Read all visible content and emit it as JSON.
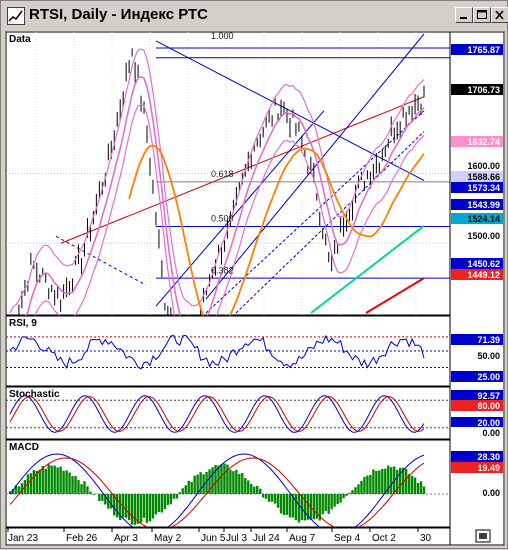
{
  "window": {
    "title": "RTSI, Daily - Индекс РТС",
    "buttons": [
      "minimize",
      "maximize",
      "close"
    ],
    "icon": "chart-app-icon"
  },
  "panels": {
    "price": {
      "label": "Data"
    },
    "rsi": {
      "label": "RSI, 9"
    },
    "stochastic": {
      "label": "Stochastic"
    },
    "macd": {
      "label": "MACD"
    }
  },
  "fib_labels": [
    "1.000",
    "0.618",
    "0.500",
    "0.382"
  ],
  "price_axis": [
    {
      "text": "1765.87",
      "bg": "#0000cc",
      "fg": "#ffffff"
    },
    {
      "text": "1706.73",
      "bg": "#000000",
      "fg": "#ffffff"
    },
    {
      "text": "1632.74",
      "bg": "#ff8fc8",
      "fg": "#ffffff"
    },
    {
      "text": "1600.00",
      "bg": "#ffffff",
      "fg": "#000000"
    },
    {
      "text": "1588.66",
      "bg": "#d0d0ff",
      "fg": "#000000"
    },
    {
      "text": "1573.34",
      "bg": "#0000cc",
      "fg": "#ffffff"
    },
    {
      "text": "1543.99",
      "bg": "#0000cc",
      "fg": "#ffffff"
    },
    {
      "text": "1524.14",
      "bg": "#00aacc",
      "fg": "#000000"
    },
    {
      "text": "1500.00",
      "bg": "#ffffff",
      "fg": "#000000"
    },
    {
      "text": "1450.62",
      "bg": "#0000cc",
      "fg": "#ffffff"
    },
    {
      "text": "1449.12",
      "bg": "#ee2222",
      "fg": "#ffffff"
    }
  ],
  "rsi_axis": [
    {
      "text": "71.39",
      "bg": "#0000cc",
      "fg": "#ffffff"
    },
    {
      "text": "50.00",
      "bg": "#ffffff",
      "fg": "#000000"
    },
    {
      "text": "25.00",
      "bg": "#0000cc",
      "fg": "#ffffff"
    }
  ],
  "stoch_axis": [
    {
      "text": "92.57",
      "bg": "#0000cc",
      "fg": "#ffffff"
    },
    {
      "text": "80.00",
      "bg": "#ee2222",
      "fg": "#ffffff"
    },
    {
      "text": "20.00",
      "bg": "#0000cc",
      "fg": "#ffffff"
    },
    {
      "text": "0.00",
      "bg": "#ffffff",
      "fg": "#000000"
    }
  ],
  "macd_axis": [
    {
      "text": "28.30",
      "bg": "#0000cc",
      "fg": "#ffffff"
    },
    {
      "text": "19.49",
      "bg": "#ee2222",
      "fg": "#ffffff"
    },
    {
      "text": "0.00",
      "bg": "#ffffff",
      "fg": "#000000"
    }
  ],
  "date_axis": [
    "Jan 23",
    "Feb 26",
    "Apr 3",
    "May 2",
    "Jun 5",
    "Jul 3",
    "Jul 24",
    "Aug 7",
    "Sep 4",
    "Oct 2",
    "30"
  ],
  "colors": {
    "price_bars": "#000000",
    "trend_blue": "#0000cc",
    "trend_red": "#cc0000",
    "ma_pink": "#e070d0",
    "ma_orange": "#ff8000",
    "ma_green": "#00d890",
    "ma_red": "#ee0000",
    "macd_hist": "#008800",
    "stoch_k": "#0000cc",
    "stoch_d": "#cc0000"
  },
  "chart_data": {
    "type": "line",
    "title": "RTSI, Daily",
    "series_last_values": {
      "close": 1706.73,
      "resistance": 1765.87,
      "bb_mid": 1632.74,
      "bb_lower": 1588.66,
      "ma_blue": 1573.34,
      "ma_orange": 1543.99,
      "ma_teal": 1524.14,
      "ma_blue_low": 1450.62,
      "ma_red": 1449.12,
      "rsi": 71.39,
      "stochastic": 92.57,
      "macd": 28.3,
      "macd_signal": 19.49
    },
    "price_range": [
      1400,
      1800
    ],
    "rsi_levels": [
      25,
      50,
      71.39
    ],
    "stoch_levels": [
      0,
      20,
      80
    ],
    "grid": true
  }
}
